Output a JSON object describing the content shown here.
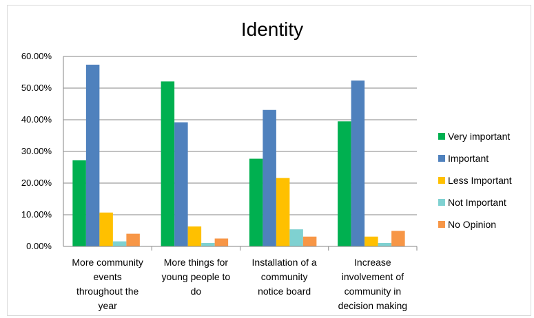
{
  "chart_data": {
    "type": "bar",
    "title": "Identity",
    "xlabel": "",
    "ylabel": "",
    "ylim": [
      0,
      0.6
    ],
    "yticks": [
      "0.00%",
      "10.00%",
      "20.00%",
      "30.00%",
      "40.00%",
      "50.00%",
      "60.00%"
    ],
    "grid": true,
    "legend_position": "right",
    "categories": [
      [
        "More community",
        "events",
        "throughout the",
        "year"
      ],
      [
        "More things for",
        "young people to",
        "do"
      ],
      [
        "Installation of a",
        "community",
        "notice board"
      ],
      [
        "Increase",
        "involvement of",
        "community in",
        "decision making"
      ]
    ],
    "series": [
      {
        "name": "Very important",
        "color": "#00b050",
        "values": [
          0.272,
          0.521,
          0.277,
          0.395
        ]
      },
      {
        "name": "Important",
        "color": "#4f81bd",
        "values": [
          0.574,
          0.392,
          0.431,
          0.524
        ]
      },
      {
        "name": "Less Important",
        "color": "#ffc000",
        "values": [
          0.107,
          0.063,
          0.216,
          0.031
        ]
      },
      {
        "name": "Not Important",
        "color": "#7fd1d1",
        "values": [
          0.016,
          0.011,
          0.054,
          0.011
        ]
      },
      {
        "name": "No Opinion",
        "color": "#f79646",
        "values": [
          0.04,
          0.025,
          0.031,
          0.049
        ]
      }
    ]
  }
}
